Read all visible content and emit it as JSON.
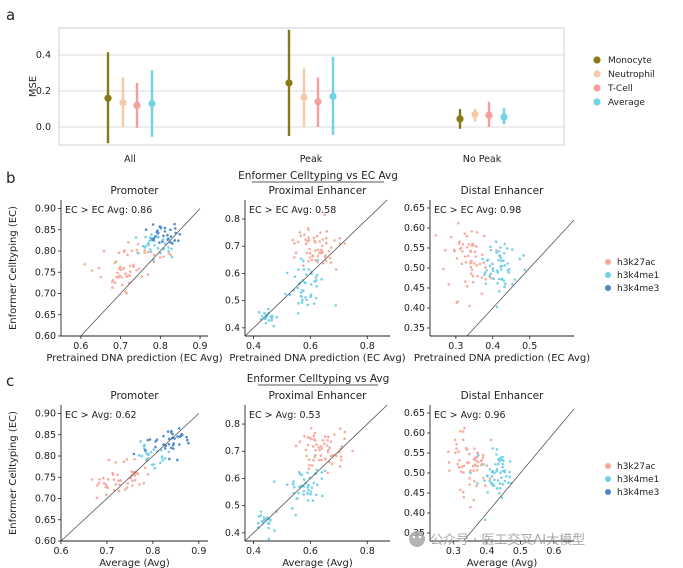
{
  "colors": {
    "Monocyte": "#8a7a17",
    "Neutrophil": "#f6c9a8",
    "T-Cell": "#f4a09a",
    "Average": "#71d3e3",
    "h3k27ac": "#f6a89a",
    "h3k4me1": "#6fd0e8",
    "h3k4me3": "#4a86c8",
    "grid": "#dddddd",
    "diag": "#555555"
  },
  "panels": {
    "a": "a",
    "b": "b",
    "c": "c"
  },
  "chart_data": [
    {
      "id": "a",
      "type": "errorbar",
      "ylabel": "MSE",
      "ylim": [
        -0.1,
        0.55
      ],
      "yticks": [
        0.0,
        0.2,
        0.4
      ],
      "ytick_labels": [
        "0.0",
        "0.2",
        "0.4"
      ],
      "categories": [
        "All",
        "Peak",
        "No Peak"
      ],
      "series": [
        {
          "name": "Monocyte",
          "mean": [
            0.16,
            0.245,
            0.045
          ],
          "low": [
            -0.09,
            -0.05,
            -0.01
          ],
          "high": [
            0.415,
            0.54,
            0.1
          ]
        },
        {
          "name": "Neutrophil",
          "mean": [
            0.135,
            0.165,
            0.07
          ],
          "low": [
            0.0,
            0.0,
            0.03
          ],
          "high": [
            0.275,
            0.325,
            0.1
          ]
        },
        {
          "name": "T-Cell",
          "mean": [
            0.12,
            0.14,
            0.065
          ],
          "low": [
            -0.005,
            0.0,
            0.0
          ],
          "high": [
            0.245,
            0.275,
            0.14
          ]
        },
        {
          "name": "Average",
          "mean": [
            0.13,
            0.17,
            0.055
          ],
          "low": [
            -0.055,
            -0.045,
            0.015
          ],
          "high": [
            0.315,
            0.39,
            0.105
          ]
        }
      ]
    },
    {
      "id": "b1",
      "type": "scatter",
      "title": "Promoter",
      "xlabel": "Pretrained DNA prediction (EC Avg)",
      "ylabel": "Enformer Celltyping (EC)",
      "xlim": [
        0.55,
        0.92
      ],
      "ylim": [
        0.6,
        0.92
      ],
      "xticks": [
        0.6,
        0.7,
        0.8,
        0.9
      ],
      "xtick_labels": [
        "0.6",
        "0.7",
        "0.8",
        "0.9"
      ],
      "yticks": [
        0.6,
        0.65,
        0.7,
        0.75,
        0.8,
        0.85,
        0.9
      ],
      "ytick_labels": [
        "0.60",
        "0.65",
        "0.70",
        "0.75",
        "0.80",
        "0.85",
        "0.90"
      ],
      "stat": "EC > EC Avg: 0.86",
      "diag": [
        0.6,
        0.9
      ],
      "clusters": [
        {
          "mark": "h3k27ac",
          "cx": 0.7,
          "cy": 0.745,
          "sx": 0.045,
          "sy": 0.045,
          "n": 42,
          "seed": 11
        },
        {
          "mark": "h3k27ac",
          "cx": 0.77,
          "cy": 0.8,
          "sx": 0.03,
          "sy": 0.03,
          "n": 15,
          "seed": 12
        },
        {
          "mark": "h3k4me1",
          "cx": 0.79,
          "cy": 0.82,
          "sx": 0.03,
          "sy": 0.025,
          "n": 35,
          "seed": 13
        },
        {
          "mark": "h3k4me3",
          "cx": 0.82,
          "cy": 0.835,
          "sx": 0.035,
          "sy": 0.02,
          "n": 30,
          "seed": 14
        }
      ]
    },
    {
      "id": "b2",
      "type": "scatter",
      "title": "Proximal Enhancer",
      "xlabel": "Pretrained DNA prediction (EC Avg)",
      "ylabel": "",
      "xlim": [
        0.37,
        0.88
      ],
      "ylim": [
        0.37,
        0.87
      ],
      "xticks": [
        0.4,
        0.6,
        0.8
      ],
      "xtick_labels": [
        "0.4",
        "0.6",
        "0.8"
      ],
      "yticks": [
        0.4,
        0.5,
        0.6,
        0.7,
        0.8
      ],
      "ytick_labels": [
        "0.4",
        "0.5",
        "0.6",
        "0.7",
        "0.8"
      ],
      "stat": "EC > EC Avg: 0.58",
      "diag": [
        0.37,
        0.87
      ],
      "clusters": [
        {
          "mark": "h3k27ac",
          "cx": 0.63,
          "cy": 0.7,
          "sx": 0.06,
          "sy": 0.055,
          "n": 60,
          "seed": 21
        },
        {
          "mark": "h3k4me1",
          "cx": 0.58,
          "cy": 0.55,
          "sx": 0.05,
          "sy": 0.06,
          "n": 45,
          "seed": 22
        },
        {
          "mark": "h3k4me1",
          "cx": 0.45,
          "cy": 0.44,
          "sx": 0.025,
          "sy": 0.025,
          "n": 20,
          "seed": 23
        }
      ]
    },
    {
      "id": "b3",
      "type": "scatter",
      "title": "Distal Enhancer",
      "xlabel": "Pretrained DNA prediction (EC Avg)",
      "ylabel": "",
      "xlim": [
        0.23,
        0.62
      ],
      "ylim": [
        0.33,
        0.67
      ],
      "xticks": [
        0.3,
        0.4,
        0.5
      ],
      "xtick_labels": [
        "0.3",
        "0.4",
        "0.5"
      ],
      "yticks": [
        0.35,
        0.4,
        0.45,
        0.5,
        0.55,
        0.6,
        0.65
      ],
      "ytick_labels": [
        "0.35",
        "0.40",
        "0.45",
        "0.50",
        "0.55",
        "0.60",
        "0.65"
      ],
      "stat": "EC > EC Avg: 0.98",
      "diag": [
        0.33,
        0.62
      ],
      "clusters": [
        {
          "mark": "h3k27ac",
          "cx": 0.34,
          "cy": 0.52,
          "sx": 0.045,
          "sy": 0.06,
          "n": 60,
          "seed": 31
        },
        {
          "mark": "h3k4me1",
          "cx": 0.42,
          "cy": 0.5,
          "sx": 0.04,
          "sy": 0.045,
          "n": 55,
          "seed": 32
        }
      ]
    },
    {
      "id": "c1",
      "type": "scatter",
      "title": "Promoter",
      "xlabel": "Average (Avg)",
      "ylabel": "Enformer Celltyping (EC)",
      "xlim": [
        0.6,
        0.92
      ],
      "ylim": [
        0.6,
        0.92
      ],
      "xticks": [
        0.6,
        0.7,
        0.8,
        0.9
      ],
      "xtick_labels": [
        "0.6",
        "0.7",
        "0.8",
        "0.9"
      ],
      "yticks": [
        0.6,
        0.65,
        0.7,
        0.75,
        0.8,
        0.85,
        0.9
      ],
      "ytick_labels": [
        "0.60",
        "0.65",
        "0.70",
        "0.75",
        "0.80",
        "0.85",
        "0.90"
      ],
      "stat": "EC > Avg: 0.62",
      "diag": [
        0.6,
        0.9
      ],
      "clusters": [
        {
          "mark": "h3k27ac",
          "cx": 0.73,
          "cy": 0.745,
          "sx": 0.05,
          "sy": 0.04,
          "n": 48,
          "seed": 41
        },
        {
          "mark": "h3k4me1",
          "cx": 0.8,
          "cy": 0.8,
          "sx": 0.025,
          "sy": 0.025,
          "n": 25,
          "seed": 42
        },
        {
          "mark": "h3k4me3",
          "cx": 0.83,
          "cy": 0.83,
          "sx": 0.035,
          "sy": 0.025,
          "n": 35,
          "seed": 43
        }
      ]
    },
    {
      "id": "c2",
      "type": "scatter",
      "title": "Proximal Enhancer",
      "xlabel": "Average (Avg)",
      "ylabel": "",
      "xlim": [
        0.37,
        0.88
      ],
      "ylim": [
        0.37,
        0.87
      ],
      "xticks": [
        0.4,
        0.6,
        0.8
      ],
      "xtick_labels": [
        "0.4",
        "0.6",
        "0.8"
      ],
      "yticks": [
        0.4,
        0.5,
        0.6,
        0.7,
        0.8
      ],
      "ytick_labels": [
        "0.4",
        "0.5",
        "0.6",
        "0.7",
        "0.8"
      ],
      "stat": "EC > Avg: 0.53",
      "diag": [
        0.37,
        0.87
      ],
      "clusters": [
        {
          "mark": "h3k27ac",
          "cx": 0.64,
          "cy": 0.71,
          "sx": 0.06,
          "sy": 0.05,
          "n": 60,
          "seed": 51
        },
        {
          "mark": "h3k4me1",
          "cx": 0.58,
          "cy": 0.56,
          "sx": 0.05,
          "sy": 0.06,
          "n": 45,
          "seed": 52
        },
        {
          "mark": "h3k4me1",
          "cx": 0.45,
          "cy": 0.44,
          "sx": 0.025,
          "sy": 0.025,
          "n": 20,
          "seed": 53
        }
      ]
    },
    {
      "id": "c3",
      "type": "scatter",
      "title": "Distal Enhancer",
      "xlabel": "Average (Avg)",
      "ylabel": "",
      "xlim": [
        0.23,
        0.66
      ],
      "ylim": [
        0.33,
        0.67
      ],
      "xticks": [
        0.3,
        0.4,
        0.5,
        0.6
      ],
      "xtick_labels": [
        "0.3",
        "0.4",
        "0.5",
        "0.6"
      ],
      "yticks": [
        0.35,
        0.4,
        0.45,
        0.5,
        0.55,
        0.6,
        0.65
      ],
      "ytick_labels": [
        "0.35",
        "0.40",
        "0.45",
        "0.50",
        "0.55",
        "0.60",
        "0.65"
      ],
      "stat": "EC > Avg: 0.96",
      "diag": [
        0.33,
        0.66
      ],
      "clusters": [
        {
          "mark": "h3k27ac",
          "cx": 0.35,
          "cy": 0.52,
          "sx": 0.05,
          "sy": 0.06,
          "n": 60,
          "seed": 61
        },
        {
          "mark": "h3k4me1",
          "cx": 0.43,
          "cy": 0.5,
          "sx": 0.04,
          "sy": 0.045,
          "n": 55,
          "seed": 62
        }
      ]
    }
  ],
  "legend_a": [
    "Monocyte",
    "Neutrophil",
    "T-Cell",
    "Average"
  ],
  "legend_marks": [
    "h3k27ac",
    "h3k4me1",
    "h3k4me3"
  ],
  "group_titles": {
    "b": "Enformer Celltyping vs EC Avg",
    "c": "Enformer Celltyping vs Avg"
  },
  "watermark": "公众号 · 医工交叉AI大模型"
}
